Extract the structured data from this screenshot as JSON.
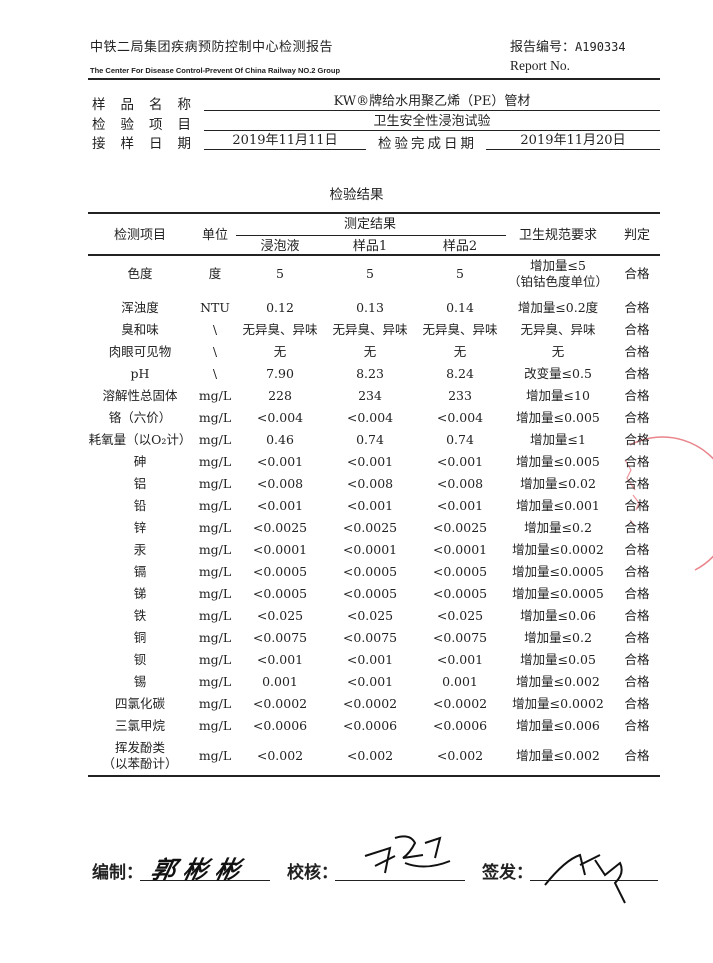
{
  "header": {
    "org_cn": "中铁二局集团疾病预防控制中心检测报告",
    "org_en": "The Center For Disease Control-Prevent  Of China Railway NO.2 Group",
    "report_no_label": "报告编号：",
    "report_no": "A190334",
    "report_no_en": "Report No."
  },
  "info": {
    "sample_name_label": "样品名称",
    "sample_name": "KW®牌给水用聚乙烯（PE）管材",
    "test_item_label": "检验项目",
    "test_item": "卫生安全性浸泡试验",
    "receive_date_label": "接样日期",
    "receive_date": "2019年11月11日",
    "complete_date_label": "检验完成日期",
    "complete_date": "2019年11月20日"
  },
  "results_title": "检验结果",
  "table": {
    "headers": {
      "item": "检测项目",
      "unit": "单位",
      "results": "测定结果",
      "soak": "浸泡液",
      "sample1": "样品1",
      "sample2": "样品2",
      "requirement": "卫生规范要求",
      "verdict": "判定"
    },
    "rows": [
      {
        "item": "色度",
        "unit": "度",
        "soak": "5",
        "s1": "5",
        "s2": "5",
        "req": "增加量≤5",
        "req2": "（铂钴色度单位）",
        "verdict": "合格"
      },
      {
        "item": "浑浊度",
        "unit": "NTU",
        "soak": "0.12",
        "s1": "0.13",
        "s2": "0.14",
        "req": "增加量≤0.2度",
        "verdict": "合格"
      },
      {
        "item": "臭和味",
        "unit": "\\",
        "soak": "无异臭、异味",
        "s1": "无异臭、异味",
        "s2": "无异臭、异味",
        "req": "无异臭、异味",
        "verdict": "合格"
      },
      {
        "item": "肉眼可见物",
        "unit": "\\",
        "soak": "无",
        "s1": "无",
        "s2": "无",
        "req": "无",
        "verdict": "合格"
      },
      {
        "item": "pH",
        "unit": "\\",
        "soak": "7.90",
        "s1": "8.23",
        "s2": "8.24",
        "req": "改变量≤0.5",
        "verdict": "合格"
      },
      {
        "item": "溶解性总固体",
        "unit": "mg/L",
        "soak": "228",
        "s1": "234",
        "s2": "233",
        "req": "增加量≤10",
        "verdict": "合格"
      },
      {
        "item": "铬（六价）",
        "unit": "mg/L",
        "soak": "<0.004",
        "s1": "<0.004",
        "s2": "<0.004",
        "req": "增加量≤0.005",
        "verdict": "合格"
      },
      {
        "item": "耗氧量（以O₂计）",
        "unit": "mg/L",
        "soak": "0.46",
        "s1": "0.74",
        "s2": "0.74",
        "req": "增加量≤1",
        "verdict": "合格"
      },
      {
        "item": "砷",
        "unit": "mg/L",
        "soak": "<0.001",
        "s1": "<0.001",
        "s2": "<0.001",
        "req": "增加量≤0.005",
        "verdict": "合格"
      },
      {
        "item": "铝",
        "unit": "mg/L",
        "soak": "<0.008",
        "s1": "<0.008",
        "s2": "<0.008",
        "req": "增加量≤0.02",
        "verdict": "合格"
      },
      {
        "item": "铅",
        "unit": "mg/L",
        "soak": "<0.001",
        "s1": "<0.001",
        "s2": "<0.001",
        "req": "增加量≤0.001",
        "verdict": "合格"
      },
      {
        "item": "锌",
        "unit": "mg/L",
        "soak": "<0.0025",
        "s1": "<0.0025",
        "s2": "<0.0025",
        "req": "增加量≤0.2",
        "verdict": "合格"
      },
      {
        "item": "汞",
        "unit": "mg/L",
        "soak": "<0.0001",
        "s1": "<0.0001",
        "s2": "<0.0001",
        "req": "增加量≤0.0002",
        "verdict": "合格"
      },
      {
        "item": "镉",
        "unit": "mg/L",
        "soak": "<0.0005",
        "s1": "<0.0005",
        "s2": "<0.0005",
        "req": "增加量≤0.0005",
        "verdict": "合格"
      },
      {
        "item": "锑",
        "unit": "mg/L",
        "soak": "<0.0005",
        "s1": "<0.0005",
        "s2": "<0.0005",
        "req": "增加量≤0.0005",
        "verdict": "合格"
      },
      {
        "item": "铁",
        "unit": "mg/L",
        "soak": "<0.025",
        "s1": "<0.025",
        "s2": "<0.025",
        "req": "增加量≤0.06",
        "verdict": "合格"
      },
      {
        "item": "铜",
        "unit": "mg/L",
        "soak": "<0.0075",
        "s1": "<0.0075",
        "s2": "<0.0075",
        "req": "增加量≤0.2",
        "verdict": "合格"
      },
      {
        "item": "钡",
        "unit": "mg/L",
        "soak": "<0.001",
        "s1": "<0.001",
        "s2": "<0.001",
        "req": "增加量≤0.05",
        "verdict": "合格"
      },
      {
        "item": "锡",
        "unit": "mg/L",
        "soak": "0.001",
        "s1": "<0.001",
        "s2": "0.001",
        "req": "增加量≤0.002",
        "verdict": "合格"
      },
      {
        "item": "四氯化碳",
        "unit": "mg/L",
        "soak": "<0.0002",
        "s1": "<0.0002",
        "s2": "<0.0002",
        "req": "增加量≤0.0002",
        "verdict": "合格"
      },
      {
        "item": "三氯甲烷",
        "unit": "mg/L",
        "soak": "<0.0006",
        "s1": "<0.0006",
        "s2": "<0.0006",
        "req": "增加量≤0.006",
        "verdict": "合格"
      },
      {
        "item": "挥发酚类",
        "item2": "（以苯酚计）",
        "unit": "mg/L",
        "soak": "<0.002",
        "s1": "<0.002",
        "s2": "<0.002",
        "req": "增加量≤0.002",
        "verdict": "合格"
      }
    ]
  },
  "signatures": {
    "prepared_label": "编制：",
    "prepared_by": "郭彬彬",
    "reviewed_label": "校核：",
    "reviewed_by": "段蓬",
    "approved_label": "签发：",
    "approved_by": "陈琴"
  },
  "colors": {
    "text": "#222222",
    "stamp": "#e0505a"
  }
}
